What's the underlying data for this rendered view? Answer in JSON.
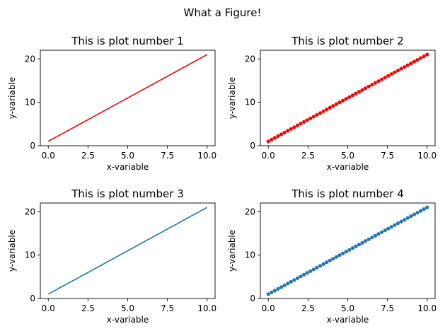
{
  "figure": {
    "suptitle": "What a Figure!"
  },
  "chart_data": [
    {
      "type": "line",
      "title": "This is plot number 1",
      "xlabel": "x-variable",
      "ylabel": "y-variable",
      "xlim": [
        -0.5,
        10.5
      ],
      "ylim": [
        0,
        22
      ],
      "xticks": [
        0,
        2.5,
        5,
        7.5,
        10
      ],
      "xtick_labels": [
        "0.0",
        "2.5",
        "5.0",
        "7.5",
        "10.0"
      ],
      "yticks": [
        0,
        10,
        20
      ],
      "ytick_labels": [
        "0",
        "10",
        "20"
      ],
      "grid": false,
      "series": [
        {
          "x": [
            0,
            10
          ],
          "y": [
            1,
            21
          ],
          "color": "#ff0000",
          "marker": "none",
          "line": true
        }
      ]
    },
    {
      "type": "scatter",
      "title": "This is plot number 2",
      "xlabel": "x-variable",
      "ylabel": "y-variable",
      "xlim": [
        -0.5,
        10.5
      ],
      "ylim": [
        0,
        22
      ],
      "xticks": [
        0,
        2.5,
        5,
        7.5,
        10
      ],
      "xtick_labels": [
        "0.0",
        "2.5",
        "5.0",
        "7.5",
        "10.0"
      ],
      "yticks": [
        0,
        10,
        20
      ],
      "ytick_labels": [
        "0",
        "10",
        "20"
      ],
      "grid": false,
      "series": [
        {
          "x_range": [
            0,
            10
          ],
          "count": 50,
          "slope": 2,
          "intercept": 1,
          "color": "#ff0000",
          "marker": "dot",
          "line": false
        }
      ]
    },
    {
      "type": "line",
      "title": "This is plot number 3",
      "xlabel": "x-variable",
      "ylabel": "y-variable",
      "xlim": [
        -0.5,
        10.5
      ],
      "ylim": [
        0,
        22
      ],
      "xticks": [
        0,
        2.5,
        5,
        7.5,
        10
      ],
      "xtick_labels": [
        "0.0",
        "2.5",
        "5.0",
        "7.5",
        "10.0"
      ],
      "yticks": [
        0,
        10,
        20
      ],
      "ytick_labels": [
        "0",
        "10",
        "20"
      ],
      "grid": false,
      "series": [
        {
          "x": [
            0,
            10
          ],
          "y": [
            1,
            21
          ],
          "color": "#1f77b4",
          "marker": "none",
          "line": true
        }
      ]
    },
    {
      "type": "scatter",
      "title": "This is plot number 4",
      "xlabel": "x-variable",
      "ylabel": "y-variable",
      "xlim": [
        -0.5,
        10.5
      ],
      "ylim": [
        0,
        22
      ],
      "xticks": [
        0,
        2.5,
        5,
        7.5,
        10
      ],
      "xtick_labels": [
        "0.0",
        "2.5",
        "5.0",
        "7.5",
        "10.0"
      ],
      "yticks": [
        0,
        10,
        20
      ],
      "ytick_labels": [
        "0",
        "10",
        "20"
      ],
      "grid": false,
      "series": [
        {
          "x_range": [
            0,
            10
          ],
          "count": 50,
          "slope": 2,
          "intercept": 1,
          "color": "#1f77b4",
          "marker": "dot",
          "line": false
        }
      ]
    }
  ]
}
